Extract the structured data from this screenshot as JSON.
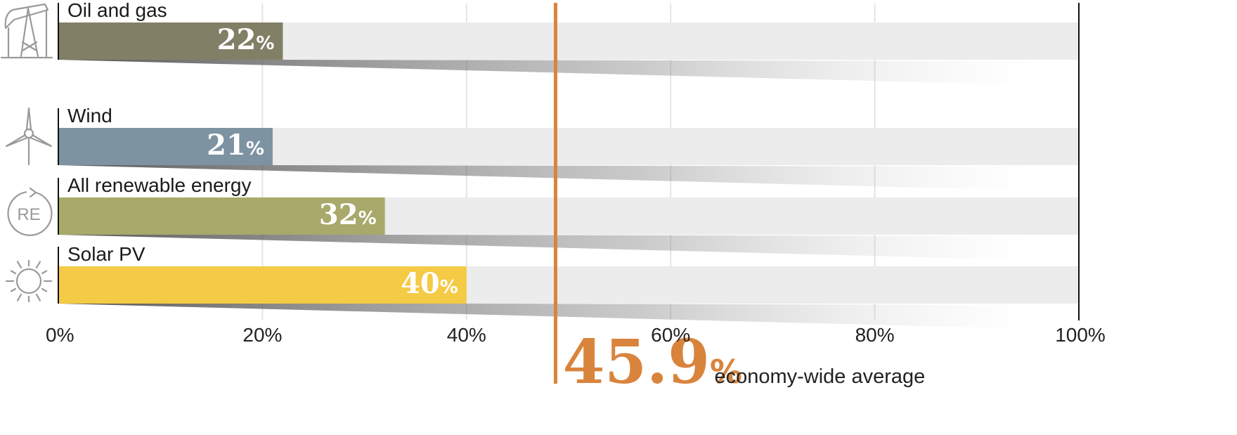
{
  "chart_data": {
    "type": "bar",
    "orientation": "horizontal",
    "categories": [
      "Oil and gas",
      "Wind",
      "All renewable energy",
      "Solar PV"
    ],
    "values": [
      22,
      21,
      32,
      40
    ],
    "value_labels": [
      "22",
      "21",
      "32",
      "40"
    ],
    "value_suffix": "%",
    "bar_colors": [
      "#827f67",
      "#7d93a1",
      "#a8a96a",
      "#f5ca45"
    ],
    "icons": [
      "oil-pump-icon",
      "wind-turbine-icon",
      "renewable-energy-icon",
      "sun-icon"
    ],
    "xlim": [
      0,
      100
    ],
    "x_ticks": [
      "0%",
      "20%",
      "40%",
      "60%",
      "80%",
      "100%"
    ],
    "x_tick_values": [
      0,
      20,
      40,
      60,
      80,
      100
    ],
    "grid": true,
    "reference_line": {
      "value": 45.9,
      "label_value": "45.9",
      "label_suffix": "%",
      "label_text": "economy-wide average",
      "color": "#d9843d"
    },
    "icon_labels": {
      "renewable": "RE"
    }
  }
}
